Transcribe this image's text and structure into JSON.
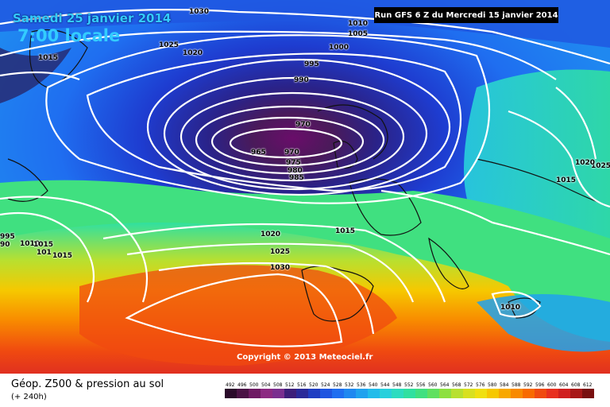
{
  "header": {
    "date": "Samedi 25 janvier 2014",
    "local_time": "7:00 locale",
    "run": "Run GFS 6 Z du Mercredi 15 janvier 2014"
  },
  "copyright": "Copyright © 2013 Meteociel.fr",
  "footer": {
    "title": "Géop. Z500 & pression au sol",
    "subtitle": "(+ 240h)"
  },
  "scale": {
    "values": [
      "492",
      "496",
      "500",
      "504",
      "508",
      "512",
      "516",
      "520",
      "524",
      "528",
      "532",
      "536",
      "540",
      "544",
      "548",
      "552",
      "556",
      "560",
      "564",
      "568",
      "572",
      "576",
      "580",
      "584",
      "588",
      "592",
      "596",
      "600",
      "604",
      "608",
      "612"
    ],
    "colors": [
      "#2a0a2a",
      "#4a1245",
      "#6e1a63",
      "#8c2a82",
      "#7a2f8f",
      "#3d1f7a",
      "#2a2a99",
      "#1f3dc2",
      "#1f55e0",
      "#1f6ef0",
      "#1f88f0",
      "#20a2ee",
      "#22bcea",
      "#28d0dc",
      "#2cdcc0",
      "#30e0a0",
      "#40e080",
      "#60e060",
      "#8ee040",
      "#b8e030",
      "#d8e020",
      "#f0e010",
      "#f6c800",
      "#f8a800",
      "#f88a00",
      "#f86a00",
      "#f04a10",
      "#e83020",
      "#d02020",
      "#a81818",
      "#781010"
    ]
  },
  "isobars": {
    "labels": [
      {
        "t": "1030"
      },
      {
        "t": "1025"
      },
      {
        "t": "1020"
      },
      {
        "t": "1015"
      },
      {
        "t": "1010"
      },
      {
        "t": "1005"
      },
      {
        "t": "1000"
      },
      {
        "t": "995"
      },
      {
        "t": "990"
      },
      {
        "t": "970"
      },
      {
        "t": "965"
      },
      {
        "t": "970"
      },
      {
        "t": "975"
      },
      {
        "t": "980"
      },
      {
        "t": "985"
      },
      {
        "t": "1020"
      },
      {
        "t": "1015"
      },
      {
        "t": "1025"
      },
      {
        "t": "1030"
      },
      {
        "t": "995"
      },
      {
        "t": "1010"
      },
      {
        "t": "1015"
      },
      {
        "t": "90"
      },
      {
        "t": "101"
      },
      {
        "t": "1015"
      },
      {
        "t": "1015"
      },
      {
        "t": "1025"
      },
      {
        "t": "1020"
      },
      {
        "t": "1010"
      }
    ]
  }
}
